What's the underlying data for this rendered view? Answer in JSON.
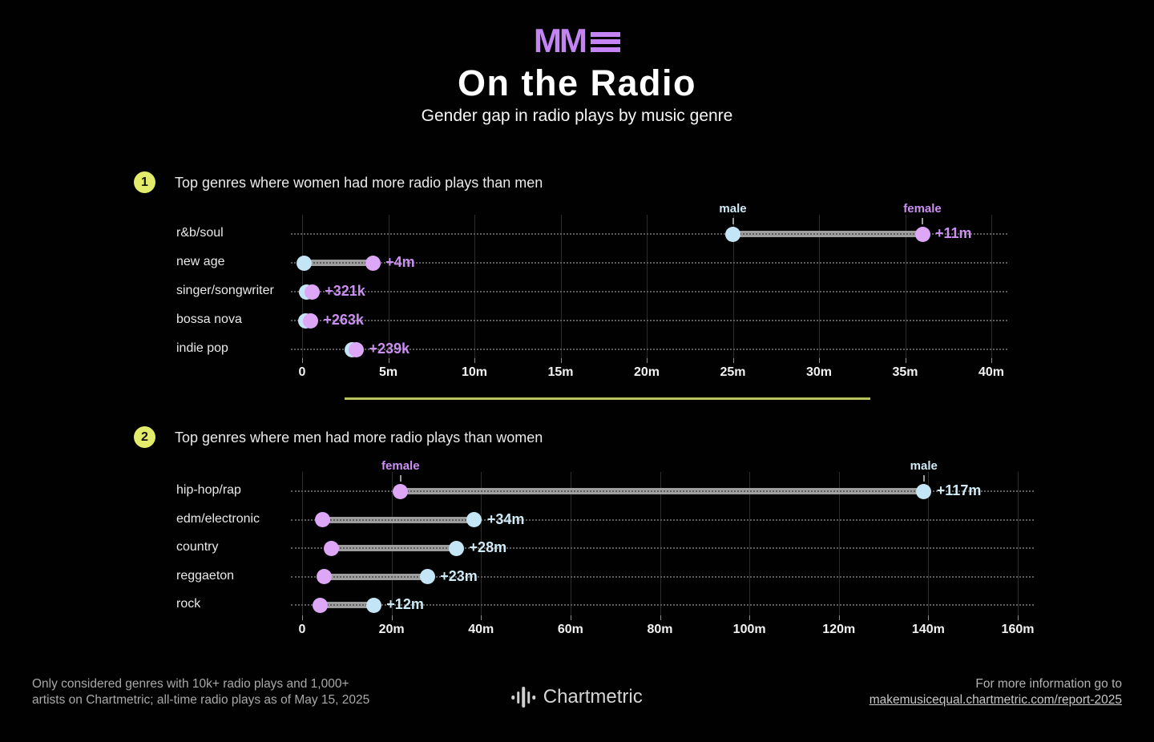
{
  "header": {
    "logo_mm": "MM",
    "title": "On the Radio",
    "subtitle": "Gender gap in radio plays by music genre"
  },
  "legend": {
    "male": "male",
    "female": "female"
  },
  "colors": {
    "male_dot": "#c4e5f6",
    "female_dot": "#dda6f6",
    "male_text": "#cfeaf7",
    "female_text": "#cb8ff2",
    "bar": "#9e9e9e",
    "badge": "#e2eb6a",
    "divider": "#b8c35c",
    "logo_purple": "#c584f4",
    "background": "#010101"
  },
  "chart_data": [
    {
      "type": "dumbbell",
      "badge": "1",
      "title": "Top genres where women had more radio plays than men",
      "winner": "female",
      "unit": "all-time radio plays, millions",
      "categories": [
        "r&b/soul",
        "new age",
        "singer/songwriter",
        "bossa nova",
        "indie pop"
      ],
      "series": [
        {
          "name": "male",
          "values": [
            25,
            0.1,
            0.25,
            0.22,
            2.9
          ]
        },
        {
          "name": "female",
          "values": [
            36,
            4.1,
            0.57,
            0.48,
            3.14
          ]
        }
      ],
      "diff_labels": [
        "+11m",
        "+4m",
        "+321k",
        "+263k",
        "+239k"
      ],
      "x_ticks": [
        "0",
        "5m",
        "10m",
        "15m",
        "20m",
        "25m",
        "30m",
        "35m",
        "40m"
      ],
      "xlim": [
        0,
        40
      ],
      "annotated_row": 0,
      "grid": "vertical-solid-plus-dotted-rows",
      "legend_position": "above-first-row"
    },
    {
      "type": "dumbbell",
      "badge": "2",
      "title": "Top genres where men had more radio plays than women",
      "winner": "male",
      "unit": "all-time radio plays, millions",
      "categories": [
        "hip-hop/rap",
        "edm/electronic",
        "country",
        "reggaeton",
        "rock"
      ],
      "series": [
        {
          "name": "male",
          "values": [
            139,
            38.5,
            34.5,
            28,
            16
          ]
        },
        {
          "name": "female",
          "values": [
            22,
            4.5,
            6.5,
            5,
            4
          ]
        }
      ],
      "diff_labels": [
        "+117m",
        "+34m",
        "+28m",
        "+23m",
        "+12m"
      ],
      "x_ticks": [
        "0",
        "20m",
        "40m",
        "60m",
        "80m",
        "100m",
        "120m",
        "140m",
        "160m"
      ],
      "xlim": [
        0,
        160
      ],
      "annotated_row": 0,
      "grid": "vertical-solid-plus-dotted-rows",
      "legend_position": "above-first-row"
    }
  ],
  "footer": {
    "note_line1": "Only considered genres with 10k+ radio plays and 1,000+",
    "note_line2": "artists on Chartmetric; all-time radio plays as of May 15, 2025",
    "brand": "Chartmetric",
    "info_line1": "For more information go to",
    "info_link": "makemusicequal.chartmetric.com/report-2025"
  }
}
